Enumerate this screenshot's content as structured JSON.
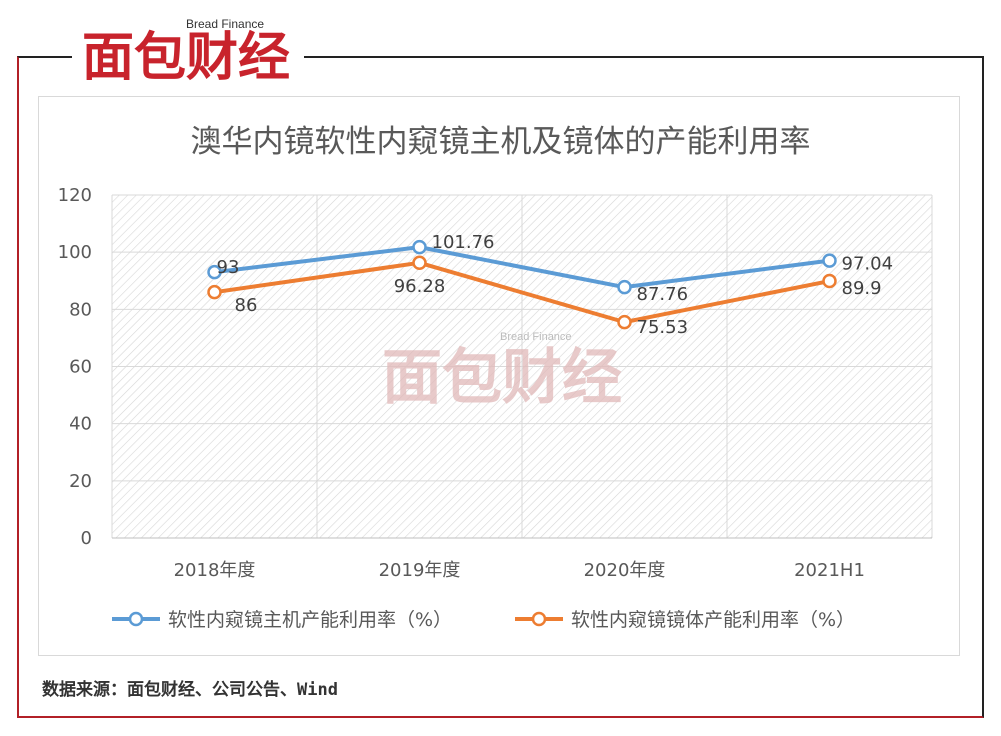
{
  "brand": {
    "logo_en": "Bread Finance",
    "logo_cn": "面包财经",
    "accent": "#c8232c"
  },
  "source_note": "数据来源：面包财经、公司公告、Wind",
  "chart_data": {
    "type": "line",
    "title": "澳华内镜软性内窥镜主机及镜体的产能利用率",
    "categories": [
      "2018年度",
      "2019年度",
      "2020年度",
      "2021H1"
    ],
    "ylim": [
      0,
      120
    ],
    "yticks": [
      0,
      20,
      40,
      60,
      80,
      100,
      120
    ],
    "grid": true,
    "legend_position": "bottom",
    "series": [
      {
        "name": "软性内窥镜主机产能利用率（%）",
        "values": [
          93,
          101.76,
          87.76,
          97.04
        ],
        "labels": [
          "93",
          "101.76",
          "87.76",
          "97.04"
        ],
        "color": "#5b9bd5"
      },
      {
        "name": "软性内窥镜镜体产能利用率（%）",
        "values": [
          86,
          96.28,
          75.53,
          89.9
        ],
        "labels": [
          "86",
          "96.28",
          "75.53",
          "89.9"
        ],
        "color": "#ed7d31"
      }
    ]
  }
}
